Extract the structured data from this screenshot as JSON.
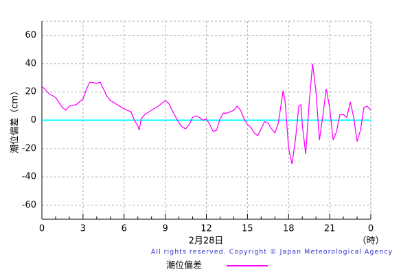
{
  "chart_data": {
    "type": "line",
    "y_label": "潮位偏差（cm）",
    "x_label": "2月28日",
    "x_unit": "（時）",
    "copyright": "All rights reserved. Copyright © Japan Meteorological Agency",
    "xlim": [
      0,
      24
    ],
    "xticks": [
      0,
      3,
      6,
      9,
      12,
      15,
      18,
      21,
      {
        "value": 24,
        "label": "0"
      }
    ],
    "xminorticks": [
      1,
      2,
      4,
      5,
      7,
      8,
      10,
      11,
      13,
      14,
      16,
      17,
      19,
      20,
      22,
      23
    ],
    "ylim": [
      -70,
      70
    ],
    "yticks": [
      -60,
      -40,
      -20,
      0,
      20,
      40,
      60
    ],
    "grid": true,
    "zero_line_color": "#00ffff",
    "series": [
      {
        "name": "潮位偏差",
        "color": "#ff00ff",
        "x": [
          0,
          0.5,
          1,
          1.5,
          1.75,
          2,
          2.5,
          3,
          3.25,
          3.5,
          4,
          4.25,
          4.5,
          4.75,
          5,
          5.5,
          6,
          6.5,
          6.75,
          7,
          7.1,
          7.25,
          7.5,
          8,
          8.5,
          9,
          9.25,
          9.5,
          10,
          10.25,
          10.5,
          10.75,
          11,
          11.25,
          11.5,
          11.75,
          12,
          12.25,
          12.5,
          12.75,
          13,
          13.25,
          13.5,
          13.75,
          14,
          14.25,
          14.5,
          14.75,
          15,
          15.25,
          15.5,
          15.75,
          16,
          16.25,
          16.5,
          16.75,
          17,
          17.25,
          17.5,
          17.6,
          17.75,
          18,
          18.25,
          18.5,
          18.75,
          18.9,
          19,
          19.25,
          19.5,
          19.75,
          20,
          20.25,
          20.5,
          20.75,
          21,
          21.25,
          21.5,
          21.75,
          22,
          22.25,
          22.5,
          22.75,
          23,
          23.25,
          23.5,
          23.75,
          24
        ],
        "values": [
          24,
          19,
          16,
          9,
          7,
          10,
          11,
          15,
          22,
          27,
          26,
          27,
          22,
          17,
          14,
          11,
          8,
          6,
          0,
          -4,
          -7,
          1,
          4,
          7,
          10,
          14,
          12,
          7,
          -2,
          -5,
          -6,
          -3,
          2,
          3,
          2,
          0,
          1,
          -3,
          -8,
          -7,
          1,
          5,
          5,
          6,
          7,
          10,
          7,
          1,
          -3,
          -5,
          -9,
          -11,
          -6,
          -1,
          -2,
          -6,
          -9,
          -2,
          14,
          21,
          13,
          -20,
          -31,
          -14,
          10,
          11,
          -3,
          -24,
          12,
          40,
          20,
          -14,
          3,
          22,
          9,
          -14,
          -8,
          4,
          4,
          2,
          13,
          2,
          -15,
          -7,
          9,
          10,
          7
        ]
      }
    ]
  }
}
